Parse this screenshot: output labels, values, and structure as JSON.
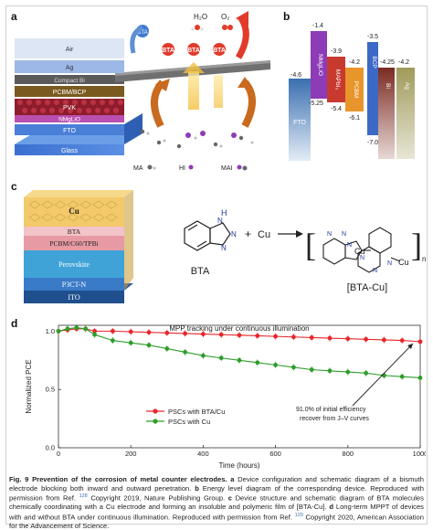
{
  "panel_a": {
    "letter": "a",
    "layers": [
      "Air",
      "Ag",
      "Compact Bi",
      "PCBM/BCP",
      "PVK",
      "NMgLiO",
      "FTO",
      "Glass"
    ],
    "bta_symbol": "BTA",
    "water_label": "H₂O",
    "oxygen_label": "O₂",
    "legend": [
      "MA",
      "HI",
      "MAI"
    ]
  },
  "panel_b": {
    "letter": "b",
    "materials": [
      {
        "name": "FTO",
        "color": "#5f86b6"
      },
      {
        "name": "NMgLiO",
        "color": "#8e3bb7"
      },
      {
        "name": "MAPbI₃",
        "color": "#c93a2e"
      },
      {
        "name": "PCBM",
        "color": "#e8962b"
      },
      {
        "name": "BCP",
        "color": "#3d69c6"
      },
      {
        "name": "Bi",
        "color": "#7a2a22"
      },
      {
        "name": "Ag",
        "color": "#8a8148"
      }
    ],
    "levels": [
      "-4.6",
      "-1.4",
      "-5.25",
      "-3.9",
      "-5.4",
      "-4.2",
      "-6.1",
      "-3.5",
      "-4.25",
      "-4.2",
      "-7.0"
    ]
  },
  "panel_c": {
    "letter": "c",
    "layers": [
      "Cu",
      "BTA",
      "PCBM/C60/TPBi",
      "Perovskite",
      "P3CT-N",
      "ITO"
    ],
    "reaction": {
      "nh_label": "H",
      "n_label": "N",
      "plus": "+",
      "cu": "Cu",
      "reactant_name": "BTA",
      "product_name": "[BTA-Cu]",
      "subscript": "n"
    }
  },
  "panel_d": {
    "letter": "d",
    "annotation_line1": "91.0% of initial efficiency",
    "annotation_line2": "recover from J–V curves"
  },
  "chart_data": {
    "type": "line",
    "title": "MPP tracking under continuous illumination",
    "xlabel": "Time (hours)",
    "ylabel": "Normalized PCE",
    "xlim": [
      0,
      1000
    ],
    "ylim": [
      0,
      1.05
    ],
    "xticks": [
      0,
      200,
      400,
      600,
      800,
      1000
    ],
    "yticks": [
      0.0,
      0.5,
      1.0
    ],
    "yticklabels": [
      "0.0",
      "0.5",
      "1.0"
    ],
    "legend_position": "center",
    "series": [
      {
        "name": "PSCs with BTA/Cu",
        "color": "#e8262b",
        "marker": "circle",
        "x": [
          0,
          25,
          50,
          75,
          100,
          150,
          200,
          250,
          300,
          350,
          400,
          450,
          500,
          550,
          600,
          650,
          700,
          750,
          800,
          850,
          900,
          950,
          1000
        ],
        "y": [
          1.0,
          1.01,
          1.02,
          1.02,
          1.0,
          1.0,
          0.995,
          0.99,
          0.985,
          0.98,
          0.975,
          0.97,
          0.965,
          0.96,
          0.955,
          0.95,
          0.945,
          0.94,
          0.935,
          0.93,
          0.925,
          0.92,
          0.91
        ]
      },
      {
        "name": "PSCs with Cu",
        "color": "#2e9d2b",
        "marker": "circle",
        "x": [
          0,
          25,
          50,
          75,
          100,
          150,
          200,
          250,
          300,
          350,
          400,
          450,
          500,
          550,
          600,
          650,
          700,
          750,
          800,
          850,
          900,
          950,
          1000
        ],
        "y": [
          1.0,
          1.02,
          1.03,
          1.02,
          0.97,
          0.92,
          0.9,
          0.88,
          0.85,
          0.82,
          0.79,
          0.77,
          0.75,
          0.73,
          0.71,
          0.69,
          0.67,
          0.66,
          0.65,
          0.64,
          0.62,
          0.61,
          0.6
        ]
      }
    ]
  },
  "caption": {
    "fig_label": "Fig. 9",
    "title": "Prevention of the corrosion of metal counter electrodes.",
    "text_a_label": "a",
    "text_a": "Device configuration and schematic diagram of a bismuth electrode blocking both inward and outward penetration.",
    "text_b_label": "b",
    "text_b": "Energy level diagram of the corresponding device. Reproduced with permission from Ref.",
    "ref_b": "128",
    "text_b2": "Copyright 2019, Nature Publishing Group.",
    "text_c_label": "c",
    "text_c": "Device structure and schematic diagram of BTA molecules chemically coordinating with a Cu electrode and forming an insoluble and polymeric film of [BTA-Cu].",
    "text_d_label": "d",
    "text_d": "Long-term MPPT of devices with and without BTA under continuous illumination. Reproduced with permission from Ref.",
    "ref_d": "129",
    "text_d2": "Copyright 2020, American Association for the Advancement of Science."
  }
}
